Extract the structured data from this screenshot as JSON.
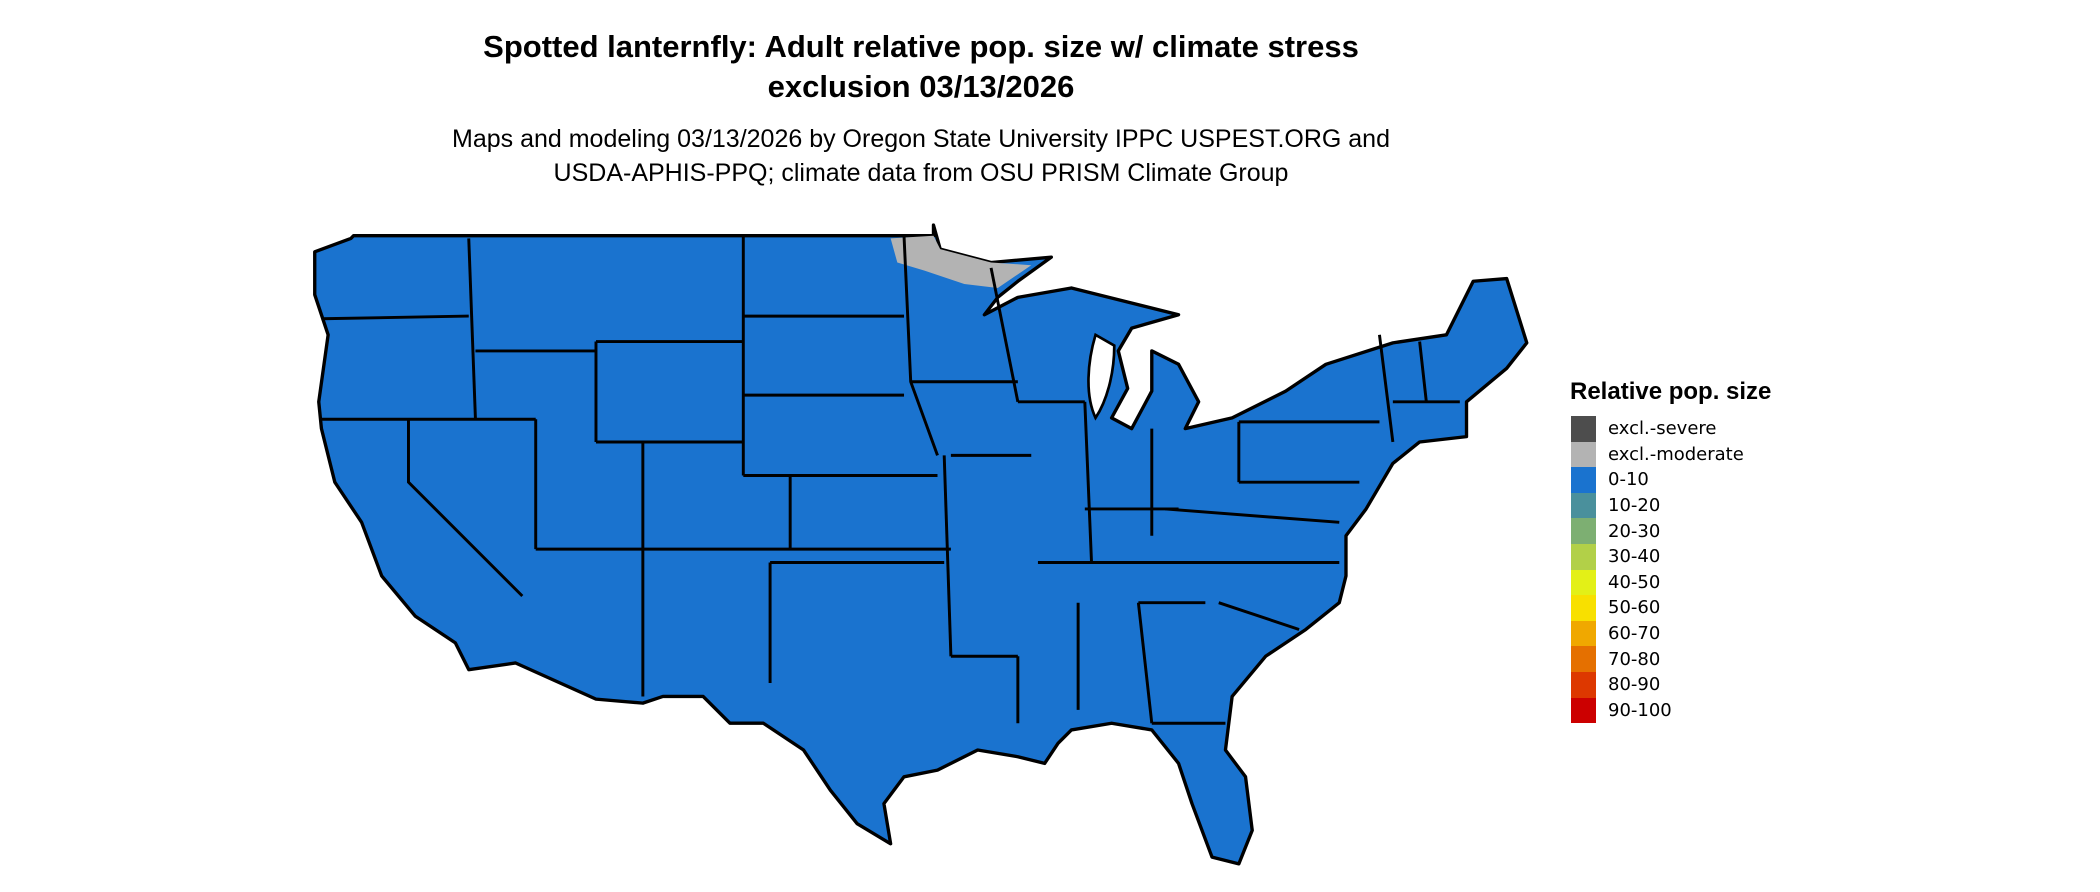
{
  "title": [
    "Spotted lanternfly: Adult relative pop. size w/ climate stress",
    "exclusion 03/13/2026"
  ],
  "subtitle": [
    "Maps and modeling 03/13/2026 by Oregon State University IPPC USPEST.ORG and",
    "USDA-APHIS-PPQ; climate data from OSU PRISM Climate Group"
  ],
  "map": {
    "region": "Contiguous United States",
    "fill_color": "#1a73cf",
    "excluded_color": "#b3b3b3",
    "border_color": "#000000"
  },
  "legend": {
    "title": "Relative pop. size",
    "items": [
      {
        "label": "excl.-severe",
        "color": "#4d4d4d"
      },
      {
        "label": "excl.-moderate",
        "color": "#b3b3b3"
      },
      {
        "label": "0-10",
        "color": "#1a73cf"
      },
      {
        "label": "10-20",
        "color": "#4a909c"
      },
      {
        "label": "20-30",
        "color": "#7daf72"
      },
      {
        "label": "30-40",
        "color": "#b2d048"
      },
      {
        "label": "40-50",
        "color": "#e3f017"
      },
      {
        "label": "50-60",
        "color": "#f8e000"
      },
      {
        "label": "60-70",
        "color": "#f0a800"
      },
      {
        "label": "70-80",
        "color": "#e57000"
      },
      {
        "label": "80-90",
        "color": "#dd3800"
      },
      {
        "label": "90-100",
        "color": "#cc0000"
      }
    ]
  }
}
